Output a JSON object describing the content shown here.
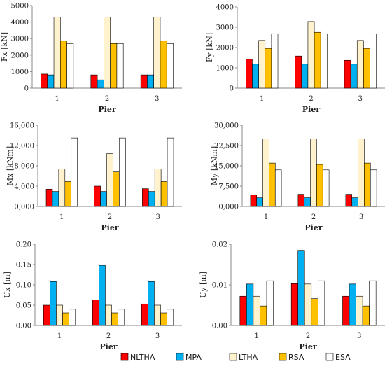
{
  "legend": [
    {
      "name": "NLTHA",
      "color": "#ff0000"
    },
    {
      "name": "MPA",
      "color": "#00b0f0"
    },
    {
      "name": "LTHA",
      "color": "#fff2cc"
    },
    {
      "name": "RSA",
      "color": "#ffc000"
    },
    {
      "name": "ESA",
      "color": "#ffffff"
    }
  ],
  "chart_data": [
    {
      "type": "bar",
      "title": "",
      "xlabel": "Pier",
      "ylabel": "Fx [kN]",
      "categories": [
        "1",
        "2",
        "3"
      ],
      "ylim": [
        0,
        5000
      ],
      "yticks": [
        "0",
        "1000",
        "2000",
        "3000",
        "4000",
        "5000"
      ],
      "ytick_values": [
        0,
        1000,
        2000,
        3000,
        4000,
        5000
      ],
      "series": [
        {
          "name": "NLTHA",
          "values": [
            850,
            800,
            800
          ]
        },
        {
          "name": "MPA",
          "values": [
            800,
            500,
            800
          ]
        },
        {
          "name": "LTHA",
          "values": [
            4300,
            4300,
            4300
          ]
        },
        {
          "name": "RSA",
          "values": [
            2850,
            2700,
            2850
          ]
        },
        {
          "name": "ESA",
          "values": [
            2700,
            2700,
            2700
          ]
        }
      ],
      "grid": false
    },
    {
      "type": "bar",
      "title": "",
      "xlabel": "Pier",
      "ylabel": "Fy [kN]",
      "categories": [
        "1",
        "2",
        "3"
      ],
      "ylim": [
        0,
        4000
      ],
      "yticks": [
        "0",
        "1000",
        "2000",
        "3000",
        "4000"
      ],
      "ytick_values": [
        0,
        1000,
        2000,
        3000,
        4000
      ],
      "series": [
        {
          "name": "NLTHA",
          "values": [
            1420,
            1580,
            1370
          ]
        },
        {
          "name": "MPA",
          "values": [
            1180,
            1180,
            1180
          ]
        },
        {
          "name": "LTHA",
          "values": [
            2350,
            3280,
            2350
          ]
        },
        {
          "name": "RSA",
          "values": [
            1960,
            2750,
            1960
          ]
        },
        {
          "name": "ESA",
          "values": [
            2680,
            2680,
            2680
          ]
        }
      ],
      "grid": false
    },
    {
      "type": "bar",
      "title": "",
      "xlabel": "Pier",
      "ylabel": "Mx [kNm]",
      "categories": [
        "1",
        "2",
        "3"
      ],
      "ylim": [
        0,
        16000
      ],
      "yticks": [
        "0,000",
        "4,000",
        "8,000",
        "12,000",
        "16,000"
      ],
      "ytick_values": [
        0,
        4000,
        8000,
        12000,
        16000
      ],
      "series": [
        {
          "name": "NLTHA",
          "values": [
            3400,
            4000,
            3500
          ]
        },
        {
          "name": "MPA",
          "values": [
            2950,
            2950,
            2950
          ]
        },
        {
          "name": "LTHA",
          "values": [
            7400,
            10400,
            7400
          ]
        },
        {
          "name": "RSA",
          "values": [
            4900,
            6800,
            4900
          ]
        },
        {
          "name": "ESA",
          "values": [
            13500,
            13500,
            13500
          ]
        }
      ],
      "grid": false
    },
    {
      "type": "bar",
      "title": "",
      "xlabel": "Pier",
      "ylabel": "My [kNm]",
      "categories": [
        "1",
        "2",
        "3"
      ],
      "ylim": [
        0,
        30000
      ],
      "yticks": [
        "0,000",
        "7,500",
        "15,000",
        "22,500",
        "30,000"
      ],
      "ytick_values": [
        0,
        7500,
        15000,
        22500,
        30000
      ],
      "series": [
        {
          "name": "NLTHA",
          "values": [
            4200,
            4500,
            4500
          ]
        },
        {
          "name": "MPA",
          "values": [
            3200,
            3200,
            3200
          ]
        },
        {
          "name": "LTHA",
          "values": [
            25000,
            25000,
            25000
          ]
        },
        {
          "name": "RSA",
          "values": [
            16000,
            15500,
            16000
          ]
        },
        {
          "name": "ESA",
          "values": [
            13500,
            13500,
            13500
          ]
        }
      ],
      "grid": false
    },
    {
      "type": "bar",
      "title": "",
      "xlabel": "Pier",
      "ylabel": "Ux [m]",
      "categories": [
        "1",
        "2",
        "3"
      ],
      "ylim": [
        0,
        0.2
      ],
      "yticks": [
        "0.00",
        "0.05",
        "0.10",
        "0.15",
        "0.20"
      ],
      "ytick_values": [
        0,
        0.05,
        0.1,
        0.15,
        0.2
      ],
      "series": [
        {
          "name": "NLTHA",
          "values": [
            0.05,
            0.063,
            0.053
          ]
        },
        {
          "name": "MPA",
          "values": [
            0.108,
            0.148,
            0.108
          ]
        },
        {
          "name": "LTHA",
          "values": [
            0.05,
            0.05,
            0.05
          ]
        },
        {
          "name": "RSA",
          "values": [
            0.031,
            0.031,
            0.031
          ]
        },
        {
          "name": "ESA",
          "values": [
            0.04,
            0.04,
            0.04
          ]
        }
      ],
      "grid": false
    },
    {
      "type": "bar",
      "title": "",
      "xlabel": "Pier",
      "ylabel": "Uy [m]",
      "categories": [
        "1",
        "2",
        "3"
      ],
      "ylim": [
        0,
        0.02
      ],
      "yticks": [
        "0.00",
        "0.01",
        "0.02"
      ],
      "ytick_values": [
        0,
        0.01,
        0.02
      ],
      "series": [
        {
          "name": "NLTHA",
          "values": [
            0.0072,
            0.0103,
            0.0072
          ]
        },
        {
          "name": "MPA",
          "values": [
            0.0102,
            0.0185,
            0.0102
          ]
        },
        {
          "name": "LTHA",
          "values": [
            0.0072,
            0.0102,
            0.0072
          ]
        },
        {
          "name": "RSA",
          "values": [
            0.0048,
            0.0066,
            0.0048
          ]
        },
        {
          "name": "ESA",
          "values": [
            0.011,
            0.011,
            0.011
          ]
        }
      ],
      "grid": false
    }
  ]
}
